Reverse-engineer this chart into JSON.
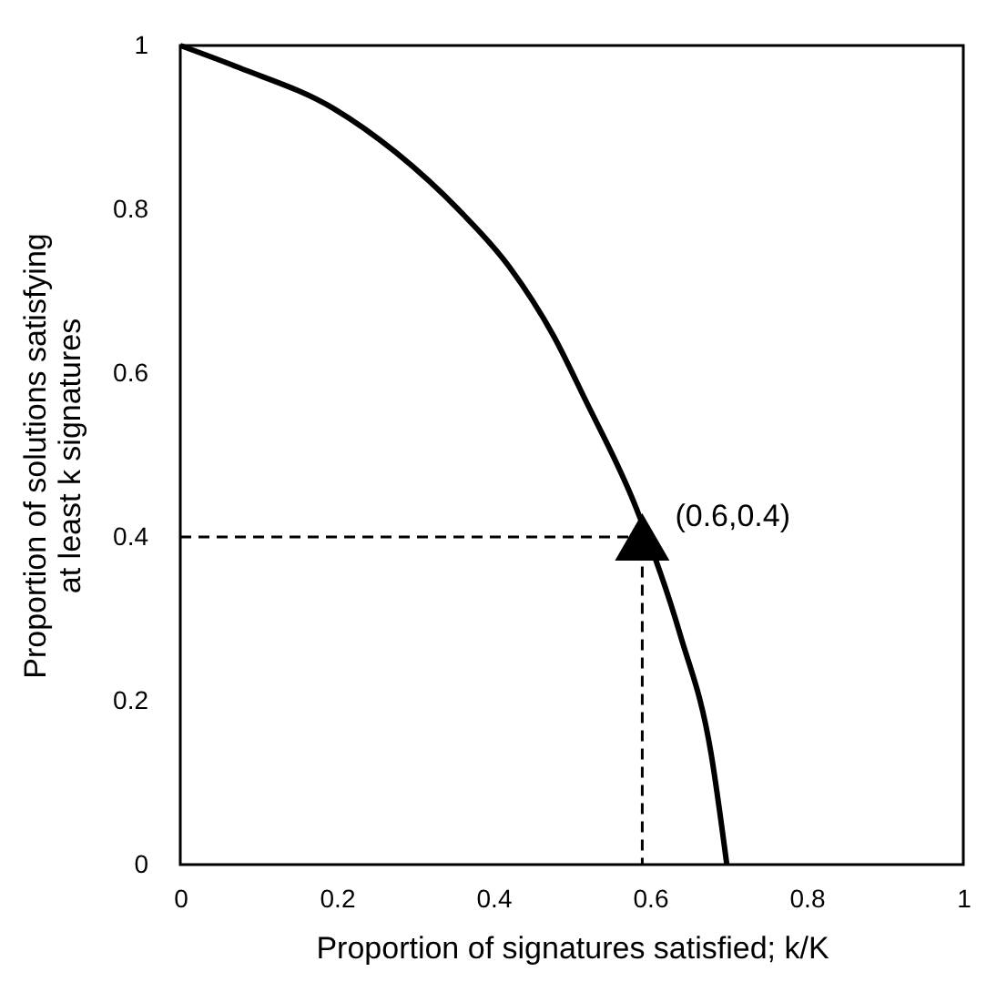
{
  "chart_data": {
    "type": "line",
    "xlabel": "Proportion of signatures satisfied; k/K",
    "ylabel": "Proportion of solutions satisfying\nat least k signatures",
    "xlim": [
      0,
      1
    ],
    "ylim": [
      0,
      1
    ],
    "xticks": [
      0,
      0.2,
      0.4,
      0.6,
      0.8,
      1
    ],
    "yticks": [
      0,
      0.2,
      0.4,
      0.6,
      0.8,
      1
    ],
    "grid": false,
    "legend": false,
    "series": [
      {
        "color": "#000000",
        "line_style": "solid",
        "marker": "none",
        "x": [
          0,
          0.075,
          0.196,
          0.276,
          0.356,
          0.42,
          0.477,
          0.517,
          0.582,
          0.638,
          0.678,
          0.698
        ],
        "values": [
          1,
          0.973,
          0.923,
          0.869,
          0.799,
          0.73,
          0.645,
          0.568,
          0.436,
          0.282,
          0.135,
          0
        ]
      },
      {
        "color": "#000000",
        "line_style": "dashed",
        "marker": "none",
        "x": [
          0,
          0.59,
          0.59
        ],
        "values": [
          0.4,
          0.4,
          0
        ]
      },
      {
        "type": "scatter",
        "color": "#000000",
        "marker": "triangle",
        "x": [
          0.59
        ],
        "values": [
          0.4
        ]
      }
    ],
    "annotations": [
      {
        "text": "(0.6,0.4)",
        "x": 0.59,
        "y": 0.4
      }
    ]
  }
}
